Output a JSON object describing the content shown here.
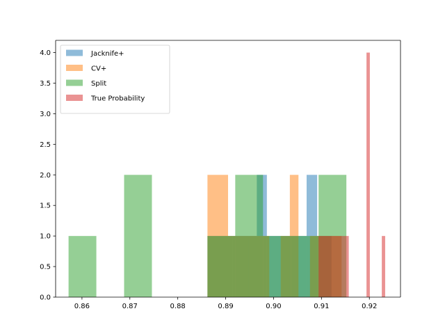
{
  "chart_data": {
    "type": "bar",
    "title": "",
    "xlabel": "",
    "ylabel": "",
    "xlim": [
      0.8545,
      0.9265
    ],
    "ylim": [
      0.0,
      4.2
    ],
    "grid": false,
    "legend": {
      "placement": "upper-left"
    },
    "xticks": [
      {
        "value": 0.86,
        "label": "0.86"
      },
      {
        "value": 0.87,
        "label": "0.87"
      },
      {
        "value": 0.88,
        "label": "0.88"
      },
      {
        "value": 0.89,
        "label": "0.89"
      },
      {
        "value": 0.9,
        "label": "0.90"
      },
      {
        "value": 0.91,
        "label": "0.91"
      },
      {
        "value": 0.92,
        "label": "0.92"
      }
    ],
    "yticks": [
      {
        "value": 0.0,
        "label": "0.0"
      },
      {
        "value": 0.5,
        "label": "0.5"
      },
      {
        "value": 1.0,
        "label": "1.0"
      },
      {
        "value": 1.5,
        "label": "1.5"
      },
      {
        "value": 2.0,
        "label": "2.0"
      },
      {
        "value": 2.5,
        "label": "2.5"
      },
      {
        "value": 3.0,
        "label": "3.0"
      },
      {
        "value": 3.5,
        "label": "3.5"
      },
      {
        "value": 4.0,
        "label": "4.0"
      }
    ],
    "series": [
      {
        "name": "Jacknife+",
        "color": "#1f77b4",
        "opacity": 0.5,
        "bins": [
          {
            "x0": 0.8862,
            "x1": 0.8914,
            "count": 1
          },
          {
            "x0": 0.8914,
            "x1": 0.8965,
            "count": 1
          },
          {
            "x0": 0.8965,
            "x1": 0.8986,
            "count": 2
          },
          {
            "x0": 0.8986,
            "x1": 0.9017,
            "count": 1
          },
          {
            "x0": 0.9017,
            "x1": 0.9069,
            "count": 1
          },
          {
            "x0": 0.9069,
            "x1": 0.9091,
            "count": 2
          },
          {
            "x0": 0.9091,
            "x1": 0.9121,
            "count": 1
          }
        ]
      },
      {
        "name": "CV+",
        "color": "#ff7f0e",
        "opacity": 0.5,
        "bins": [
          {
            "x0": 0.8862,
            "x1": 0.8905,
            "count": 2
          },
          {
            "x0": 0.8905,
            "x1": 0.8948,
            "count": 1
          },
          {
            "x0": 0.8948,
            "x1": 0.8991,
            "count": 1
          },
          {
            "x0": 0.9015,
            "x1": 0.9034,
            "count": 1
          },
          {
            "x0": 0.9034,
            "x1": 0.9052,
            "count": 2
          },
          {
            "x0": 0.9076,
            "x1": 0.9119,
            "count": 1
          },
          {
            "x0": 0.9119,
            "x1": 0.9142,
            "count": 1
          }
        ]
      },
      {
        "name": "Split",
        "color": "#2ca02c",
        "opacity": 0.5,
        "bins": [
          {
            "x0": 0.8572,
            "x1": 0.863,
            "count": 1
          },
          {
            "x0": 0.8688,
            "x1": 0.8746,
            "count": 2
          },
          {
            "x0": 0.8862,
            "x1": 0.892,
            "count": 1
          },
          {
            "x0": 0.892,
            "x1": 0.8978,
            "count": 2
          },
          {
            "x0": 0.8978,
            "x1": 0.9036,
            "count": 1
          },
          {
            "x0": 0.9036,
            "x1": 0.9094,
            "count": 1
          },
          {
            "x0": 0.9094,
            "x1": 0.9152,
            "count": 2
          }
        ]
      },
      {
        "name": "True Probability",
        "color": "#d62728",
        "opacity": 0.5,
        "bins": [
          {
            "x0": 0.9094,
            "x1": 0.9157,
            "count": 1
          },
          {
            "x0": 0.9194,
            "x1": 0.9201,
            "count": 4
          },
          {
            "x0": 0.9226,
            "x1": 0.9233,
            "count": 1
          }
        ]
      }
    ]
  }
}
